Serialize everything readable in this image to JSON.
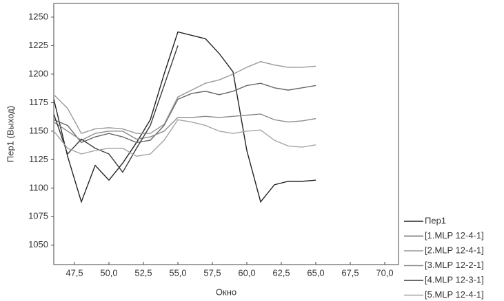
{
  "chart_data": {
    "type": "line",
    "x_label": "Окно",
    "y_label": "Пер1 (Выход)",
    "x": [
      46,
      47,
      48,
      49,
      50,
      51,
      52,
      53,
      54,
      55,
      56,
      57,
      58,
      59,
      60,
      61,
      62,
      63,
      64,
      65
    ],
    "series": [
      {
        "name": "Пер1",
        "color": "#222222",
        "values": [
          1178,
          1128,
          1088,
          1120,
          1107,
          1122,
          1140,
          1160,
          1200,
          1237,
          1234,
          1231,
          1218,
          1202,
          1133,
          1088,
          1103,
          1106,
          1106,
          1107
        ]
      },
      {
        "name": "[1.MLP 12-4-1]",
        "color": "#666666",
        "values": [
          1160,
          1155,
          1140,
          1145,
          1148,
          1145,
          1140,
          1142,
          1155,
          1178,
          1183,
          1185,
          1182,
          1185,
          1190,
          1192,
          1188,
          1186,
          1188,
          1190
        ]
      },
      {
        "name": "[2.MLP 12-4-1]",
        "color": "#999999",
        "values": [
          1182,
          1170,
          1148,
          1152,
          1153,
          1152,
          1148,
          1148,
          1156,
          1180,
          1186,
          1192,
          1195,
          1200,
          1206,
          1211,
          1208,
          1206,
          1206,
          1207
        ]
      },
      {
        "name": "[3.MLP 12-2-1]",
        "color": "#8a8a8a",
        "values": [
          1158,
          1150,
          1142,
          1148,
          1150,
          1150,
          1143,
          1145,
          1150,
          1162,
          1162,
          1163,
          1162,
          1163,
          1164,
          1165,
          1160,
          1158,
          1159,
          1161
        ]
      },
      {
        "name": "[4.MLP 12-3-1]",
        "color": "#3a3a3a",
        "values": [
          1165,
          1130,
          1143,
          1135,
          1130,
          1114,
          1135,
          1155,
          1190,
          1225,
          null,
          null,
          null,
          null,
          null,
          null,
          null,
          null,
          null,
          null
        ]
      },
      {
        "name": "[5.MLP 12-4-1]",
        "color": "#a5a5a5",
        "values": [
          1150,
          1135,
          1130,
          1133,
          1135,
          1135,
          1128,
          1130,
          1142,
          1160,
          1158,
          1155,
          1150,
          1148,
          1150,
          1151,
          1142,
          1137,
          1136,
          1138
        ]
      }
    ],
    "xlim": [
      46,
      71
    ],
    "ylim": [
      1033,
      1262
    ],
    "xticks": [
      {
        "value": 47.5,
        "label": "47,5"
      },
      {
        "value": 50,
        "label": "50,0"
      },
      {
        "value": 52.5,
        "label": "52,5"
      },
      {
        "value": 55,
        "label": "55,0"
      },
      {
        "value": 57.5,
        "label": "57,5"
      },
      {
        "value": 60,
        "label": "60,0"
      },
      {
        "value": 62.5,
        "label": "62,5"
      },
      {
        "value": 65,
        "label": "65,0"
      },
      {
        "value": 67.5,
        "label": "67,5"
      },
      {
        "value": 70,
        "label": "70,0"
      }
    ],
    "yticks": [
      1050,
      1075,
      1100,
      1125,
      1150,
      1175,
      1200,
      1225,
      1250
    ],
    "grid": false,
    "legend": "bottom-right"
  }
}
